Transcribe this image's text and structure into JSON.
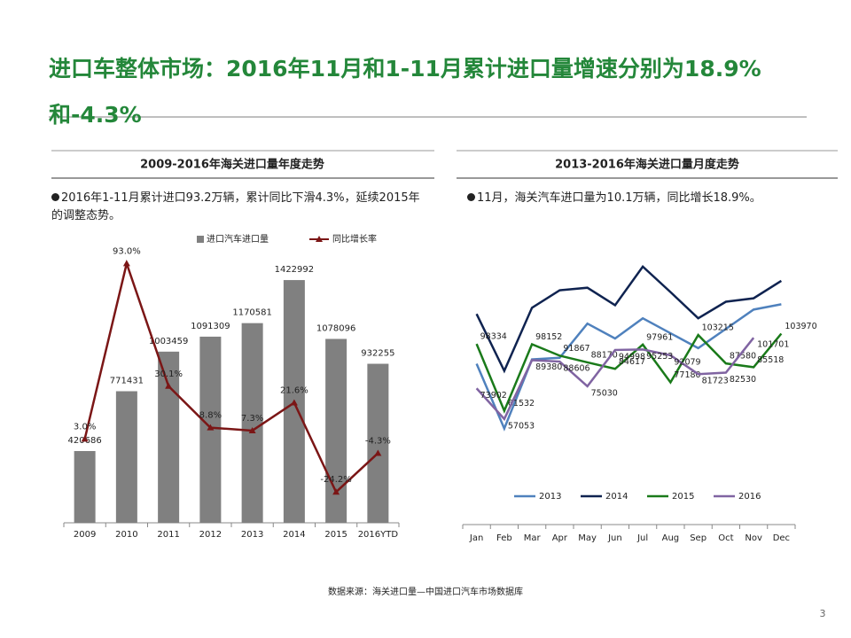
{
  "header": {
    "title": "进口车整体市场：2016年11月和1-11月累计进口量增速分别为18.9%和-4.3%"
  },
  "panels": [
    {
      "heading": "2009-2016年海关进口量年度走势",
      "bullet": "2016年1-11月累计进口93.2万辆，累计同比下滑4.3%，延续2015年的调整态势。"
    },
    {
      "heading": "2013-2016年海关进口量月度走势",
      "bullet": "11月，海关汽车进口量为10.1万辆，同比增长18.9%。"
    }
  ],
  "chart_data": [
    {
      "type": "bar",
      "categories": [
        "2009",
        "2010",
        "2011",
        "2012",
        "2013",
        "2014",
        "2015",
        "2016YTD"
      ],
      "series": [
        {
          "name": "进口汽车进口量",
          "color": "#808080",
          "values": [
            420686,
            771431,
            1003459,
            1091309,
            1170581,
            1422992,
            1078096,
            932255
          ]
        },
        {
          "name": "同比增长率",
          "color": "#7b1616",
          "type": "line",
          "axis": "y2",
          "values": [
            3.0,
            93.0,
            30.1,
            8.8,
            7.3,
            21.6,
            -24.2,
            -4.3
          ],
          "value_labels": [
            "3.0%",
            "93.0%",
            "30.1%",
            "8.8%",
            "7.3%",
            "21.6%",
            "-24.2%",
            "-4.3%"
          ]
        }
      ],
      "ylim": [
        0,
        1600000
      ],
      "y2lim": [
        -40,
        100
      ],
      "legend": "top"
    },
    {
      "type": "line",
      "categories": [
        "Jan",
        "Feb",
        "Mar",
        "Apr",
        "May",
        "Jun",
        "Jul",
        "Aug",
        "Sep",
        "Oct",
        "Nov",
        "Dec"
      ],
      "series": [
        {
          "name": "2013",
          "color": "#4f81bd",
          "values": [
            87400,
            51800,
            89800,
            90700,
            109500,
            101300,
            112400,
            104200,
            96000,
            106600,
            117200,
            120100
          ]
        },
        {
          "name": "2014",
          "color": "#0f2350",
          "values": [
            114800,
            83500,
            118200,
            127800,
            129200,
            119600,
            140800,
            126800,
            112400,
            121500,
            123400,
            133000
          ]
        },
        {
          "name": "2015",
          "color": "#1a7a1a",
          "data_labels": true,
          "values": [
            98334,
            61532,
            98152,
            91867,
            88170,
            84617,
            97961,
            77180,
            103215,
            87580,
            85518,
            103970
          ]
        },
        {
          "name": "2016",
          "color": "#8064a2",
          "data_labels": true,
          "values": [
            73902,
            57053,
            89380,
            88606,
            75030,
            94998,
            95253,
            92079,
            81723,
            82530,
            101701,
            null
          ]
        }
      ],
      "ylim": [
        0,
        150000
      ],
      "legend": "bottom"
    }
  ],
  "source": "数据来源：海关进口量—中国进口汽车市场数据库",
  "page_number": 3
}
